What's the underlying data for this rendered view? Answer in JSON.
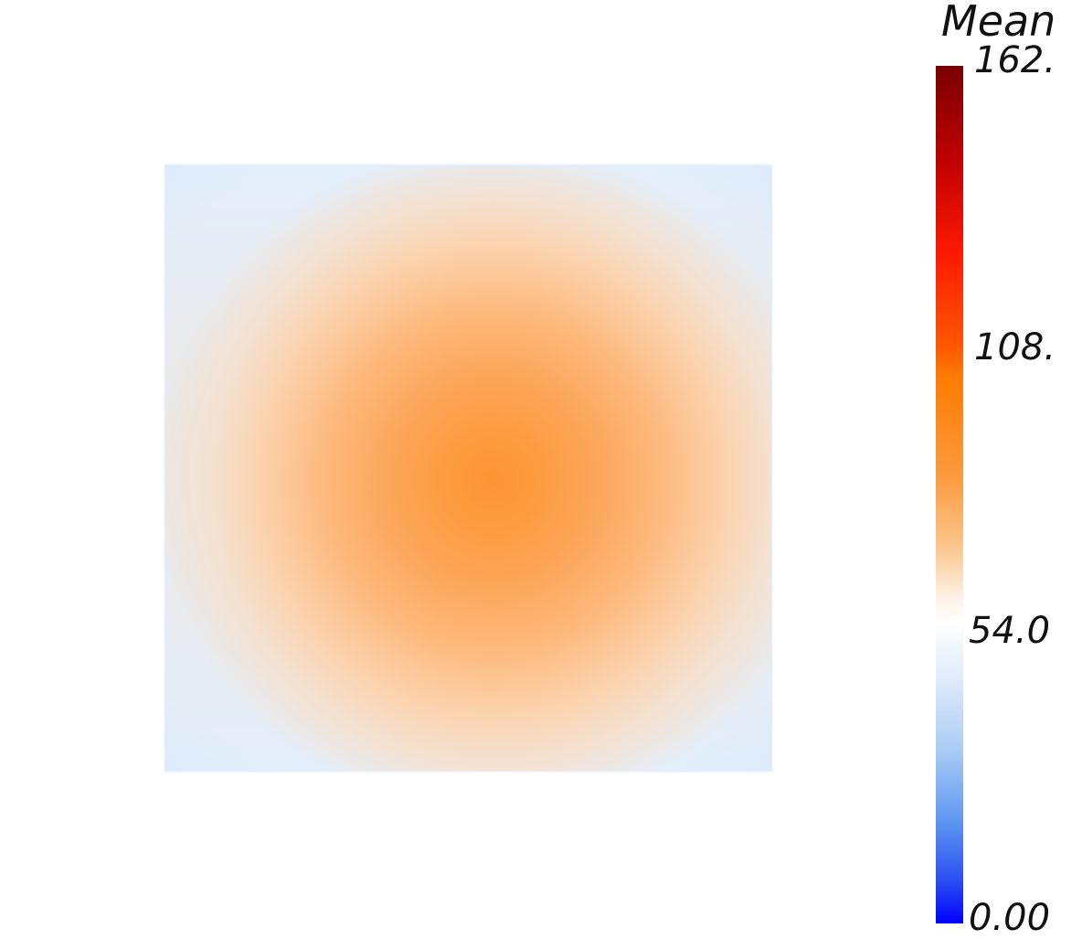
{
  "colorbar": {
    "title": "Mean",
    "ticks": [
      "162.",
      "108.",
      "54.0",
      "0.00"
    ],
    "colors": {
      "max": "#7a0000",
      "high": "#ff1a00",
      "upper_mid": "#ff7a00",
      "mid": "#ffffff",
      "low": "#5f97f2",
      "min": "#0000ff"
    }
  },
  "field": {
    "peak_color": "#fb9635",
    "edge_color": "#e3eefb"
  }
}
